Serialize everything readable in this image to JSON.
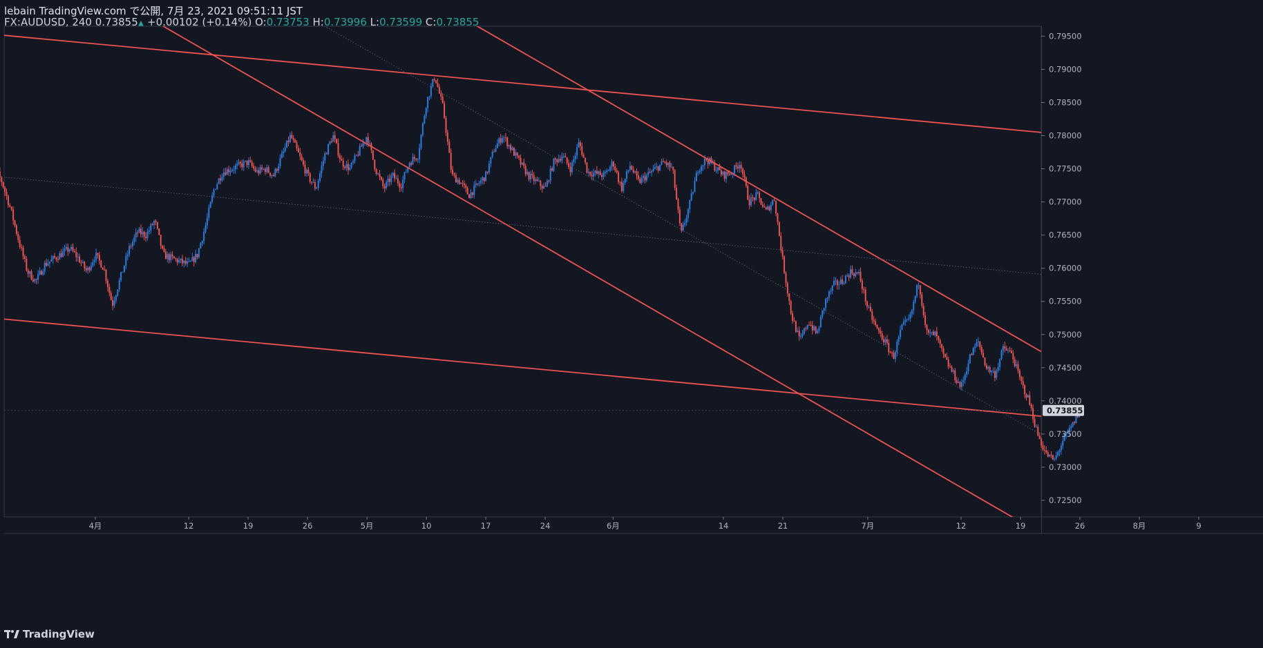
{
  "header": {
    "publisher_line": "lebain TradingView.com で公開, 7月 23, 2021 09:51:11 JST",
    "symbol_prefix": "FX:AUDUSD, 240 0.73855",
    "change": "+0.00102 (+0.14%)",
    "open_label": "O:",
    "open_value": "0.73753",
    "high_label": "H:",
    "high_value": "0.73996",
    "low_label": "L:",
    "low_value": "0.73599",
    "close_label": "C:",
    "close_value": "0.73855"
  },
  "footer": {
    "brand": "TradingView"
  },
  "colors": {
    "background": "#131722",
    "up": "#2a7de1",
    "down": "#ef5350",
    "trendline": "#f05350",
    "axis_text": "#b2b5be",
    "price_tag_bg": "#d1d4dc",
    "price_tag_text": "#131722"
  },
  "chart_data": {
    "type": "candlestick",
    "symbol": "FX:AUDUSD",
    "timeframe": "240",
    "ylim": [
      0.7225,
      0.7965
    ],
    "x_ticks": [
      {
        "label": "4月",
        "date": "2021-04-01"
      },
      {
        "label": "12",
        "date": "2021-04-12"
      },
      {
        "label": "19",
        "date": "2021-04-19"
      },
      {
        "label": "26",
        "date": "2021-04-26"
      },
      {
        "label": "5月",
        "date": "2021-05-03"
      },
      {
        "label": "10",
        "date": "2021-05-10"
      },
      {
        "label": "17",
        "date": "2021-05-17"
      },
      {
        "label": "24",
        "date": "2021-05-24"
      },
      {
        "label": "6月",
        "date": "2021-06-01"
      },
      {
        "label": "14",
        "date": "2021-06-14"
      },
      {
        "label": "21",
        "date": "2021-06-21"
      },
      {
        "label": "7月",
        "date": "2021-07-01"
      },
      {
        "label": "12",
        "date": "2021-07-12"
      },
      {
        "label": "19",
        "date": "2021-07-19"
      },
      {
        "label": "26",
        "date": "2021-07-26"
      },
      {
        "label": "8月",
        "date": "2021-08-02"
      },
      {
        "label": "9",
        "date": "2021-08-09"
      }
    ],
    "y_ticks": [
      "0.79500",
      "0.79000",
      "0.78500",
      "0.78000",
      "0.77500",
      "0.77000",
      "0.76500",
      "0.76000",
      "0.75500",
      "0.75000",
      "0.74500",
      "0.74000",
      "0.73500",
      "0.73000",
      "0.72500"
    ],
    "last_price": "0.73855",
    "price_path": [
      {
        "date": "2021-03-19",
        "price": 0.774
      },
      {
        "date": "2021-03-20",
        "price": 0.7755
      },
      {
        "date": "2021-03-21",
        "price": 0.773
      },
      {
        "date": "2021-03-22",
        "price": 0.769
      },
      {
        "date": "2021-03-23",
        "price": 0.764
      },
      {
        "date": "2021-03-24",
        "price": 0.7595
      },
      {
        "date": "2021-03-25",
        "price": 0.758
      },
      {
        "date": "2021-03-26",
        "price": 0.7605
      },
      {
        "date": "2021-03-29",
        "price": 0.763
      },
      {
        "date": "2021-03-30",
        "price": 0.7615
      },
      {
        "date": "2021-03-31",
        "price": 0.7595
      },
      {
        "date": "2021-04-01",
        "price": 0.762
      },
      {
        "date": "2021-04-02",
        "price": 0.76
      },
      {
        "date": "2021-04-03",
        "price": 0.7545
      },
      {
        "date": "2021-04-05",
        "price": 0.763
      },
      {
        "date": "2021-04-06",
        "price": 0.7655
      },
      {
        "date": "2021-04-07",
        "price": 0.765
      },
      {
        "date": "2021-04-08",
        "price": 0.7672
      },
      {
        "date": "2021-04-09",
        "price": 0.762
      },
      {
        "date": "2021-04-12",
        "price": 0.7605
      },
      {
        "date": "2021-04-13",
        "price": 0.762
      },
      {
        "date": "2021-04-14",
        "price": 0.7665
      },
      {
        "date": "2021-04-15",
        "price": 0.772
      },
      {
        "date": "2021-04-16",
        "price": 0.7745
      },
      {
        "date": "2021-04-19",
        "price": 0.776
      },
      {
        "date": "2021-04-20",
        "price": 0.7745
      },
      {
        "date": "2021-04-21",
        "price": 0.775
      },
      {
        "date": "2021-04-22",
        "price": 0.774
      },
      {
        "date": "2021-04-23",
        "price": 0.777
      },
      {
        "date": "2021-04-24",
        "price": 0.78
      },
      {
        "date": "2021-04-26",
        "price": 0.774
      },
      {
        "date": "2021-04-27",
        "price": 0.772
      },
      {
        "date": "2021-04-28",
        "price": 0.777
      },
      {
        "date": "2021-04-29",
        "price": 0.78
      },
      {
        "date": "2021-04-30",
        "price": 0.776
      },
      {
        "date": "2021-05-01",
        "price": 0.775
      },
      {
        "date": "2021-05-03",
        "price": 0.78
      },
      {
        "date": "2021-05-04",
        "price": 0.775
      },
      {
        "date": "2021-05-05",
        "price": 0.772
      },
      {
        "date": "2021-05-06",
        "price": 0.774
      },
      {
        "date": "2021-05-07",
        "price": 0.7725
      },
      {
        "date": "2021-05-08",
        "price": 0.776
      },
      {
        "date": "2021-05-09",
        "price": 0.777
      },
      {
        "date": "2021-05-10",
        "price": 0.785
      },
      {
        "date": "2021-05-11",
        "price": 0.789
      },
      {
        "date": "2021-05-12",
        "price": 0.784
      },
      {
        "date": "2021-05-13",
        "price": 0.774
      },
      {
        "date": "2021-05-14",
        "price": 0.773
      },
      {
        "date": "2021-05-15",
        "price": 0.771
      },
      {
        "date": "2021-05-17",
        "price": 0.774
      },
      {
        "date": "2021-05-18",
        "price": 0.778
      },
      {
        "date": "2021-05-19",
        "price": 0.78
      },
      {
        "date": "2021-05-20",
        "price": 0.778
      },
      {
        "date": "2021-05-21",
        "price": 0.776
      },
      {
        "date": "2021-05-22",
        "price": 0.774
      },
      {
        "date": "2021-05-24",
        "price": 0.772
      },
      {
        "date": "2021-05-25",
        "price": 0.776
      },
      {
        "date": "2021-05-26",
        "price": 0.777
      },
      {
        "date": "2021-05-27",
        "price": 0.775
      },
      {
        "date": "2021-05-28",
        "price": 0.779
      },
      {
        "date": "2021-05-29",
        "price": 0.7745
      },
      {
        "date": "2021-05-31",
        "price": 0.774
      },
      {
        "date": "2021-06-01",
        "price": 0.776
      },
      {
        "date": "2021-06-02",
        "price": 0.772
      },
      {
        "date": "2021-06-03",
        "price": 0.7755
      },
      {
        "date": "2021-06-04",
        "price": 0.773
      },
      {
        "date": "2021-06-05",
        "price": 0.774
      },
      {
        "date": "2021-06-06",
        "price": 0.775
      },
      {
        "date": "2021-06-07",
        "price": 0.776
      },
      {
        "date": "2021-06-08",
        "price": 0.775
      },
      {
        "date": "2021-06-09",
        "price": 0.765
      },
      {
        "date": "2021-06-10",
        "price": 0.7695
      },
      {
        "date": "2021-06-11",
        "price": 0.775
      },
      {
        "date": "2021-06-12",
        "price": 0.7765
      },
      {
        "date": "2021-06-14",
        "price": 0.774
      },
      {
        "date": "2021-06-15",
        "price": 0.7745
      },
      {
        "date": "2021-06-16",
        "price": 0.776
      },
      {
        "date": "2021-06-17",
        "price": 0.77
      },
      {
        "date": "2021-06-18",
        "price": 0.771
      },
      {
        "date": "2021-06-19",
        "price": 0.7685
      },
      {
        "date": "2021-06-20",
        "price": 0.7705
      },
      {
        "date": "2021-06-21",
        "price": 0.761
      },
      {
        "date": "2021-06-22",
        "price": 0.753
      },
      {
        "date": "2021-06-23",
        "price": 0.749
      },
      {
        "date": "2021-06-24",
        "price": 0.752
      },
      {
        "date": "2021-06-25",
        "price": 0.75
      },
      {
        "date": "2021-06-26",
        "price": 0.755
      },
      {
        "date": "2021-06-27",
        "price": 0.7575
      },
      {
        "date": "2021-06-28",
        "price": 0.758
      },
      {
        "date": "2021-06-29",
        "price": 0.7595
      },
      {
        "date": "2021-06-30",
        "price": 0.759
      },
      {
        "date": "2021-07-01",
        "price": 0.754
      },
      {
        "date": "2021-07-02",
        "price": 0.751
      },
      {
        "date": "2021-07-03",
        "price": 0.749
      },
      {
        "date": "2021-07-04",
        "price": 0.7465
      },
      {
        "date": "2021-07-05",
        "price": 0.751
      },
      {
        "date": "2021-07-06",
        "price": 0.7525
      },
      {
        "date": "2021-07-07",
        "price": 0.758
      },
      {
        "date": "2021-07-08",
        "price": 0.75
      },
      {
        "date": "2021-07-09",
        "price": 0.75
      },
      {
        "date": "2021-07-10",
        "price": 0.7465
      },
      {
        "date": "2021-07-12",
        "price": 0.742
      },
      {
        "date": "2021-07-13",
        "price": 0.7465
      },
      {
        "date": "2021-07-14",
        "price": 0.749
      },
      {
        "date": "2021-07-15",
        "price": 0.745
      },
      {
        "date": "2021-07-16",
        "price": 0.744
      },
      {
        "date": "2021-07-17",
        "price": 0.748
      },
      {
        "date": "2021-07-18",
        "price": 0.747
      },
      {
        "date": "2021-07-19",
        "price": 0.743
      },
      {
        "date": "2021-07-20",
        "price": 0.74
      },
      {
        "date": "2021-07-21",
        "price": 0.735
      },
      {
        "date": "2021-07-22",
        "price": 0.732
      },
      {
        "date": "2021-07-23",
        "price": 0.731
      },
      {
        "date": "2021-07-24",
        "price": 0.734
      },
      {
        "date": "2021-07-25",
        "price": 0.736
      },
      {
        "date": "2021-07-26",
        "price": 0.7386
      }
    ],
    "trendlines": [
      {
        "name": "upper-channel",
        "from": {
          "date": "2021-03-19",
          "price": 0.7954
        },
        "to": {
          "date": "2021-08-12",
          "price": 0.7779
        },
        "style": "solid"
      },
      {
        "name": "lower-channel",
        "from": {
          "date": "2021-03-19",
          "price": 0.7526
        },
        "to": {
          "date": "2021-08-12",
          "price": 0.7351
        },
        "style": "solid"
      },
      {
        "name": "steep-resistance",
        "from": {
          "date": "2021-05-16",
          "price": 0.7965
        },
        "to": {
          "date": "2021-08-12",
          "price": 0.7315
        },
        "style": "solid"
      },
      {
        "name": "steep-support",
        "from": {
          "date": "2021-04-09",
          "price": 0.7965
        },
        "to": {
          "date": "2021-07-18",
          "price": 0.7225
        },
        "style": "solid"
      },
      {
        "name": "mid-dotted",
        "from": {
          "date": "2021-03-19",
          "price": 0.774
        },
        "to": {
          "date": "2021-08-12",
          "price": 0.7565
        },
        "style": "dotted"
      },
      {
        "name": "inner-dotted",
        "from": {
          "date": "2021-04-29",
          "price": 0.7958
        },
        "to": {
          "date": "2021-08-07",
          "price": 0.7228
        },
        "style": "dotted"
      }
    ]
  }
}
